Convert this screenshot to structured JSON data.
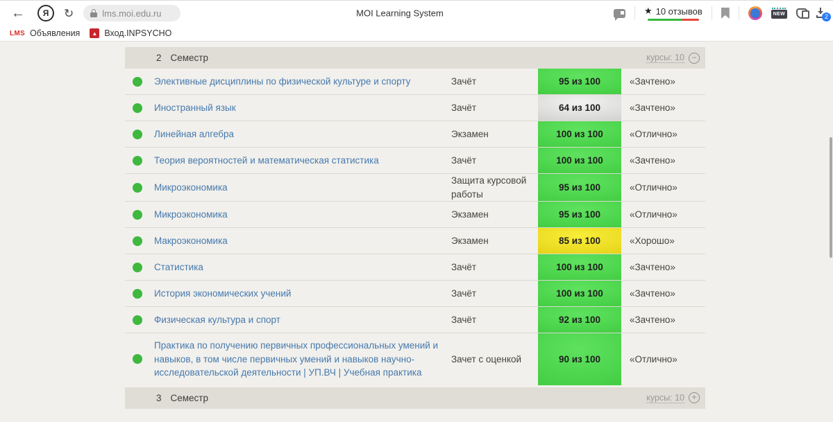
{
  "browser": {
    "logo_letter": "Я",
    "url": "lms.moi.edu.ru",
    "tab_title": "MOI Learning System",
    "reviews": {
      "star": "★",
      "label": "10 отзывов"
    },
    "new_label": "NEW",
    "downloads_badge": "2",
    "bookmarks": [
      {
        "favicon_text": "LMS",
        "label": "Объявления"
      },
      {
        "favicon_glyph": "▲",
        "label": "Вход.INPSYCHO"
      }
    ]
  },
  "table": {
    "sections": [
      {
        "number": "2",
        "title": "Семестр",
        "courses_label": "курсы: 10",
        "toggle": "−"
      },
      {
        "number": "3",
        "title": "Семестр",
        "courses_label": "курсы: 10",
        "toggle": "+"
      }
    ],
    "rows": [
      {
        "name": "Элективные дисциплины по физической культуре и спорту",
        "type": "Зачёт",
        "score": "95 из 100",
        "badge": "green",
        "grade": "«Зачтено»"
      },
      {
        "name": "Иностранный язык",
        "type": "Зачёт",
        "score": "64 из 100",
        "badge": "gray",
        "grade": "«Зачтено»"
      },
      {
        "name": "Линейная алгебра",
        "type": "Экзамен",
        "score": "100 из 100",
        "badge": "green",
        "grade": "«Отлично»"
      },
      {
        "name": "Теория вероятностей и математическая статистика",
        "type": "Зачёт",
        "score": "100 из 100",
        "badge": "green",
        "grade": "«Зачтено»"
      },
      {
        "name": "Микроэкономика",
        "type": "Защита курсовой работы",
        "score": "95 из 100",
        "badge": "green",
        "grade": "«Отлично»"
      },
      {
        "name": "Микроэкономика",
        "type": "Экзамен",
        "score": "95 из 100",
        "badge": "green",
        "grade": "«Отлично»"
      },
      {
        "name": "Макроэкономика",
        "type": "Экзамен",
        "score": "85 из 100",
        "badge": "yellow",
        "grade": "«Хорошо»"
      },
      {
        "name": "Статистика",
        "type": "Зачёт",
        "score": "100 из 100",
        "badge": "green",
        "grade": "«Зачтено»"
      },
      {
        "name": "История экономических учений",
        "type": "Зачёт",
        "score": "100 из 100",
        "badge": "green",
        "grade": "«Зачтено»"
      },
      {
        "name": "Физическая культура и спорт",
        "type": "Зачёт",
        "score": "92 из 100",
        "badge": "green",
        "grade": "«Зачтено»"
      },
      {
        "name": "Практика по получению первичных профессиональных умений и навыков, в том числе первичных умений и навыков научно-исследовательской деятельности | УП.ВЧ | Учебная практика",
        "type": "Зачет с оценкой",
        "score": "90 из 100",
        "badge": "green",
        "grade": "«Отлично»"
      }
    ]
  },
  "colors": {
    "status_dot": "#3eb83e",
    "badge_green": "#3cc83c",
    "badge_gray": "#c7c7c5",
    "badge_yellow": "#dfc90c",
    "link": "#4679ad",
    "reviews_bar_green": "#37b83c",
    "reviews_bar_red": "#e8453c"
  }
}
